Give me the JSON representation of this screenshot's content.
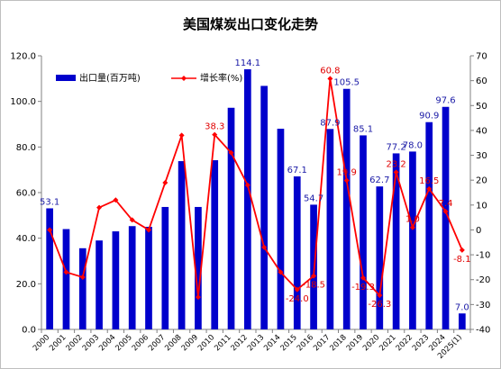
{
  "chart_data": {
    "type": "bar",
    "title": "美国煤炭出口变化走势",
    "categories": [
      "2000",
      "2001",
      "2002",
      "2003",
      "2004",
      "2005",
      "2006",
      "2007",
      "2008",
      "2009",
      "2010",
      "2011",
      "2012",
      "2013",
      "2014",
      "2015",
      "2016",
      "2017",
      "2018",
      "2019",
      "2020",
      "2021",
      "2022",
      "2023",
      "2024",
      "2025(1)"
    ],
    "series": [
      {
        "name": "出口量(百万吨)",
        "type": "bar",
        "axis": "left",
        "color": "#0000cc",
        "values": [
          53.1,
          44.0,
          35.6,
          39.0,
          43.0,
          45.3,
          45.0,
          53.7,
          73.8,
          53.7,
          74.2,
          97.2,
          114.1,
          106.8,
          88.0,
          67.1,
          54.7,
          87.9,
          105.5,
          85.1,
          62.7,
          77.2,
          78.0,
          90.9,
          97.6,
          7.0
        ],
        "labels": [
          "53.1",
          "",
          "",
          "",
          "",
          "",
          "",
          "",
          "",
          "",
          "",
          "",
          "114.1",
          "",
          "",
          "67.1",
          "54.7",
          "87.9",
          "105.5",
          "85.1",
          "62.7",
          "77.2",
          "78.0",
          "90.9",
          "97.6",
          "7.0"
        ]
      },
      {
        "name": "增长率(%)",
        "type": "line",
        "axis": "right",
        "color": "#ff0000",
        "values": [
          0.0,
          -17.0,
          -19.0,
          9.0,
          12.0,
          4.0,
          0.0,
          19.0,
          38.0,
          -27.0,
          38.3,
          31.0,
          18.0,
          -7.0,
          -17.0,
          -24.0,
          -18.5,
          60.8,
          19.9,
          -19.3,
          -26.3,
          23.2,
          1.0,
          16.5,
          7.4,
          -8.1
        ],
        "labels": [
          "",
          "",
          "",
          "",
          "",
          "",
          "",
          "",
          "",
          "",
          "38.3",
          "",
          "",
          "",
          "",
          "-24.0",
          "-18.5",
          "60.8",
          "19.9",
          "-19.3",
          "-26.3",
          "23.2",
          "1.0",
          "16.5",
          "7.4",
          "-8.1"
        ]
      }
    ],
    "y_left": {
      "min": 0,
      "max": 120,
      "ticks": [
        "0.0",
        "20.0",
        "40.0",
        "60.0",
        "80.0",
        "100.0",
        "120.0"
      ]
    },
    "y_right": {
      "min": -40,
      "max": 70,
      "ticks": [
        "-40",
        "-30",
        "-20",
        "-10",
        "0",
        "10",
        "20",
        "30",
        "40",
        "50",
        "60",
        "70"
      ]
    },
    "legend_position": "top-left",
    "grid": false
  }
}
